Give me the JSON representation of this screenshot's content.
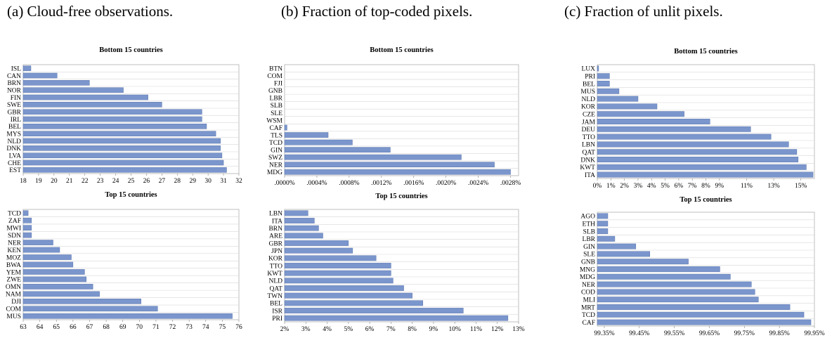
{
  "captions": {
    "a": "(a) Cloud-free observations.",
    "b": "(b) Fraction of top-coded pixels.",
    "c": "(c) Fraction of unlit pixels."
  },
  "colors": {
    "bar": "#7b96cc",
    "bar_edge": "#5873ad",
    "frame": "#b0b0b0"
  },
  "chart_data": [
    {
      "id": "a-bottom",
      "type": "bar",
      "orientation": "horizontal",
      "title": "Bottom 15 countries",
      "categories": [
        "ISL",
        "CAN",
        "BRN",
        "NOR",
        "FIN",
        "SWE",
        "GBR",
        "IRL",
        "BEL",
        "MYS",
        "NLD",
        "DNK",
        "LVA",
        "CHE",
        "EST"
      ],
      "values": [
        18.5,
        20.2,
        22.3,
        24.5,
        26.1,
        27.0,
        29.6,
        29.6,
        29.9,
        30.5,
        30.8,
        30.8,
        30.9,
        31.0,
        31.2
      ],
      "xlim": [
        18,
        32
      ],
      "ticks": [
        18,
        19,
        20,
        21,
        22,
        23,
        24,
        25,
        26,
        27,
        28,
        29,
        30,
        31,
        32
      ],
      "tick_labels": [
        "18",
        "19",
        "20",
        "21",
        "22",
        "23",
        "24",
        "25",
        "26",
        "27",
        "28",
        "29",
        "30",
        "31",
        "32"
      ],
      "grid": true
    },
    {
      "id": "a-top",
      "type": "bar",
      "orientation": "horizontal",
      "title": "Top 15 countries",
      "categories": [
        "TCD",
        "ZAF",
        "MWI",
        "SDN",
        "NER",
        "KEN",
        "MOZ",
        "BWA",
        "YEM",
        "ZWE",
        "OMN",
        "NAM",
        "DJI",
        "COM",
        "MUS"
      ],
      "values": [
        63.3,
        63.5,
        63.5,
        63.5,
        64.8,
        65.2,
        65.9,
        66.0,
        66.7,
        66.8,
        67.2,
        67.6,
        70.1,
        71.1,
        75.6
      ],
      "xlim": [
        63,
        76
      ],
      "ticks": [
        63,
        64,
        65,
        66,
        67,
        68,
        69,
        70,
        71,
        72,
        73,
        74,
        75,
        76
      ],
      "tick_labels": [
        "63",
        "64",
        "65",
        "66",
        "67",
        "68",
        "69",
        "70",
        "71",
        "72",
        "73",
        "74",
        "75",
        "76"
      ],
      "grid": true
    },
    {
      "id": "b-bottom",
      "type": "bar",
      "orientation": "horizontal",
      "title": "Bottom 15 countries",
      "categories": [
        "BTN",
        "COM",
        "FJI",
        "GNB",
        "LBR",
        "SLB",
        "SLE",
        "WSM",
        "CAF",
        "TLS",
        "TCD",
        "GIN",
        "SWZ",
        "NER",
        "MDG"
      ],
      "values": [
        0,
        0,
        0,
        0,
        0,
        0,
        0,
        0,
        3e-05,
        0.00054,
        0.00084,
        0.00131,
        0.00219,
        0.0026,
        0.0028
      ],
      "xlim": [
        0,
        0.0029
      ],
      "ticks": [
        0,
        0.0004,
        0.0008,
        0.0012,
        0.0016,
        0.002,
        0.0024,
        0.0028
      ],
      "tick_labels": [
        ".0000%",
        ".0004%",
        ".0008%",
        ".0012%",
        ".0016%",
        ".0020%",
        ".0024%",
        ".0028%"
      ],
      "grid": true
    },
    {
      "id": "b-top",
      "type": "bar",
      "orientation": "horizontal",
      "title": "Top 15 countries",
      "categories": [
        "LBN",
        "ITA",
        "BRN",
        "ARE",
        "GBR",
        "JPN",
        "KOR",
        "TTO",
        "KWT",
        "NLD",
        "QAT",
        "TWN",
        "BEL",
        "ISR",
        "PRI"
      ],
      "values": [
        3.1,
        3.4,
        3.6,
        3.8,
        5.0,
        5.2,
        6.3,
        7.0,
        7.0,
        7.1,
        7.6,
        8.0,
        8.5,
        10.4,
        12.5
      ],
      "xlim": [
        2,
        13
      ],
      "ticks": [
        2,
        3,
        4,
        5,
        6,
        7,
        8,
        9,
        10,
        11,
        12,
        13
      ],
      "tick_labels": [
        "2%",
        "3%",
        "4%",
        "5%",
        "6%",
        "7%",
        "8%",
        "9%",
        "10%",
        "11%",
        "12%",
        "13%"
      ],
      "grid": true
    },
    {
      "id": "c-bottom",
      "type": "bar",
      "orientation": "horizontal",
      "title": "Bottom 15 countries",
      "categories": [
        "LUX",
        "PRI",
        "BEL",
        "MUS",
        "NLD",
        "KOR",
        "CZE",
        "JAM",
        "DEU",
        "TTO",
        "LBN",
        "QAT",
        "DNK",
        "KWT",
        "ITA"
      ],
      "values": [
        0.1,
        0.9,
        0.9,
        1.6,
        3.0,
        4.4,
        6.4,
        8.3,
        11.3,
        12.8,
        14.1,
        14.7,
        14.8,
        15.4,
        15.9
      ],
      "xlim": [
        0,
        16
      ],
      "ticks": [
        0,
        1,
        2,
        3,
        4,
        5,
        6,
        7,
        8,
        9,
        11,
        13,
        15
      ],
      "tick_labels": [
        "0%",
        "1%",
        "2%",
        "3%",
        "4%",
        "5%",
        "6%",
        "7%",
        "8%",
        "9%",
        "11%",
        "13%",
        "15%"
      ],
      "grid": true
    },
    {
      "id": "c-top",
      "type": "bar",
      "orientation": "horizontal",
      "title": "Top 15 countries",
      "categories": [
        "AGO",
        "ETH",
        "SLB",
        "LBR",
        "GIN",
        "SLE",
        "GNB",
        "MNG",
        "MDG",
        "NER",
        "COD",
        "MLI",
        "MRT",
        "TCD",
        "CAF"
      ],
      "values": [
        99.36,
        99.36,
        99.36,
        99.38,
        99.44,
        99.48,
        99.59,
        99.68,
        99.71,
        99.77,
        99.78,
        99.79,
        99.88,
        99.92,
        99.94
      ],
      "xlim": [
        99.33,
        99.95
      ],
      "ticks": [
        99.35,
        99.45,
        99.55,
        99.65,
        99.75,
        99.85,
        99.95
      ],
      "tick_labels": [
        "99.35%",
        "99.45%",
        "99.55%",
        "99.65%",
        "99.75%",
        "99.85%",
        "99.95%"
      ],
      "grid": true
    }
  ]
}
